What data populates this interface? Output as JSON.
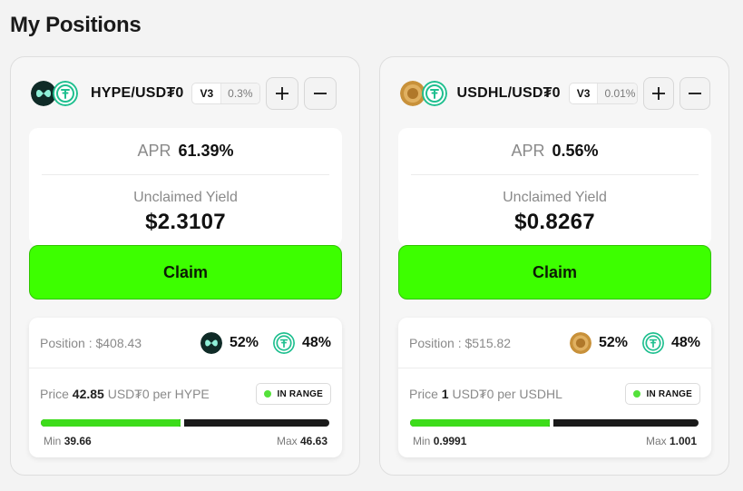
{
  "page_title": "My Positions",
  "positions": [
    {
      "pair": "HYPE/USD₮0",
      "version": "V3",
      "fee": "0.3%",
      "apr_label": "APR",
      "apr": "61.39%",
      "yield_label": "Unclaimed Yield",
      "yield": "$2.3107",
      "claim_label": "Claim",
      "position_label": "Position :",
      "position_value": "$408.43",
      "token0_share": "52%",
      "token1_share": "48%",
      "price_label": "Price",
      "price_value": "42.85",
      "price_unit": "USD₮0 per HYPE",
      "range_status": "IN RANGE",
      "range_fill_fraction": 0.49,
      "min_label": "Min",
      "min_value": "39.66",
      "max_label": "Max",
      "max_value": "46.63",
      "token0_icon": "hype-token-icon",
      "token1_icon": "usdt0-token-icon"
    },
    {
      "pair": "USDHL/USD₮0",
      "version": "V3",
      "fee": "0.01%",
      "apr_label": "APR",
      "apr": "0.56%",
      "yield_label": "Unclaimed Yield",
      "yield": "$0.8267",
      "claim_label": "Claim",
      "position_label": "Position :",
      "position_value": "$515.82",
      "token0_share": "52%",
      "token1_share": "48%",
      "price_label": "Price",
      "price_value": "1",
      "price_unit": "USD₮0 per USDHL",
      "range_status": "IN RANGE",
      "range_fill_fraction": 0.49,
      "min_label": "Min",
      "min_value": "0.9991",
      "max_label": "Max",
      "max_value": "1.001",
      "token0_icon": "usdhl-token-icon",
      "token1_icon": "usdt0-token-icon"
    }
  ],
  "colors": {
    "claim_green": "#3dff00",
    "range_green": "#3ddc1a",
    "usdt0_teal": "#1fbf8f",
    "hype_dark": "#0f2b27",
    "usdhl_gold": "#c8913a"
  }
}
